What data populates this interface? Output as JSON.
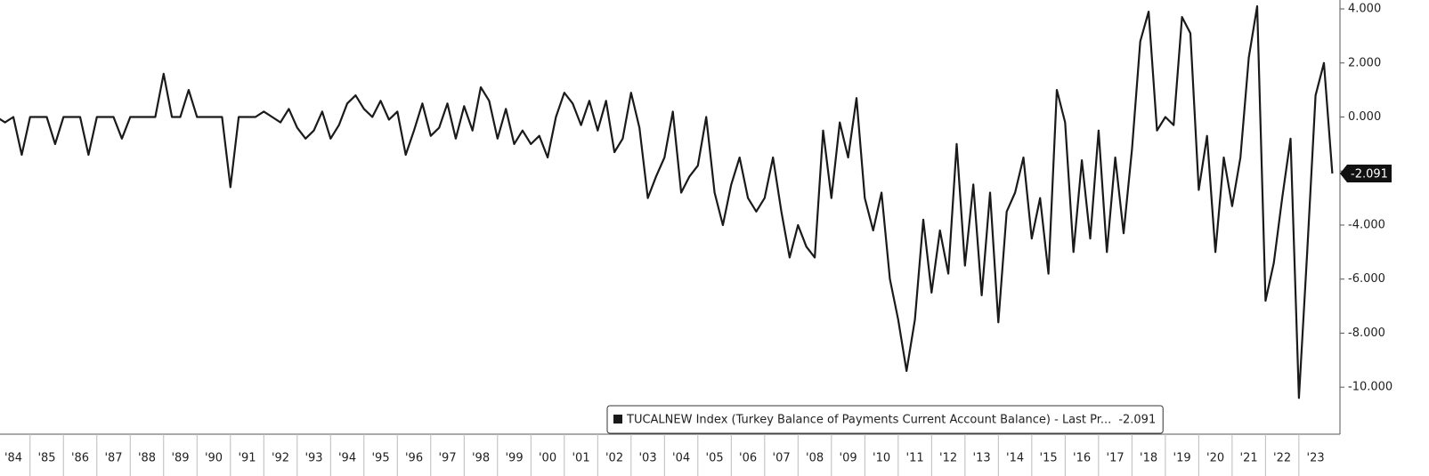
{
  "chart_data": {
    "type": "line",
    "series": [
      {
        "name": "TUCALNEW Index (Turkey Balance of Payments Current Account Balance) - Last Pr...",
        "color": "#1a1a1a",
        "values": [
          0,
          -0.2,
          0,
          -1.4,
          0,
          0,
          0,
          -1.0,
          0,
          0,
          0,
          -1.4,
          0,
          0,
          0,
          -0.8,
          0,
          0,
          0,
          0,
          1.6,
          0,
          0,
          1.0,
          0,
          0,
          0,
          0,
          -2.6,
          0,
          0,
          0,
          0.2,
          0,
          -0.2,
          0.3,
          -0.4,
          -0.8,
          -0.5,
          0.2,
          -0.8,
          -0.3,
          0.5,
          0.8,
          0.3,
          0,
          0.6,
          -0.1,
          0.2,
          -1.4,
          -0.5,
          0.5,
          -0.7,
          -0.4,
          0.5,
          -0.8,
          0.4,
          -0.5,
          1.1,
          0.6,
          -0.8,
          0.3,
          -1.0,
          -0.5,
          -1.0,
          -0.7,
          -1.5,
          0,
          0.9,
          0.5,
          -0.3,
          0.6,
          -0.5,
          0.6,
          -1.3,
          -0.8,
          0.9,
          -0.4,
          -3.0,
          -2.2,
          -1.5,
          0.2,
          -2.8,
          -2.2,
          -1.8,
          0,
          -2.8,
          -4.0,
          -2.5,
          -1.5,
          -3.0,
          -3.5,
          -3.0,
          -1.5,
          -3.5,
          -5.2,
          -4.0,
          -4.8,
          -5.2,
          -0.5,
          -3.0,
          -0.2,
          -1.5,
          0.7,
          -3.0,
          -4.2,
          -2.8,
          -6.0,
          -7.5,
          -9.4,
          -7.5,
          -3.8,
          -6.5,
          -4.2,
          -5.8,
          -1.0,
          -5.5,
          -2.5,
          -6.6,
          -2.8,
          -7.6,
          -3.5,
          -2.8,
          -1.5,
          -4.5,
          -3.0,
          -5.8,
          1.0,
          -0.2,
          -5.0,
          -1.6,
          -4.5,
          -0.5,
          -5.0,
          -1.5,
          -4.3,
          -1.2,
          2.8,
          3.9,
          -0.5,
          0,
          -0.3,
          3.7,
          3.1,
          -2.7,
          -0.7,
          -5.0,
          -1.5,
          -3.3,
          -1.5,
          2.2,
          4.1,
          -6.8,
          -5.4,
          -3.0,
          -0.8,
          -10.4,
          -5.0,
          0.8,
          2.0,
          -2.091
        ]
      }
    ],
    "x": [
      1984,
      1984.25,
      1984.5,
      1984.75,
      1985,
      1985.25,
      1985.5,
      1985.75,
      1986,
      1986.25,
      1986.5,
      1986.75,
      1987,
      1987.25,
      1987.5,
      1987.75,
      1988,
      1988.25,
      1988.5,
      1988.75,
      1989,
      1989.25,
      1989.5,
      1989.75,
      1990,
      1990.25,
      1990.5,
      1990.75,
      1991,
      1991.25,
      1991.5,
      1991.75,
      1992,
      1992.25,
      1992.5,
      1992.75,
      1993,
      1993.25,
      1993.5,
      1993.75,
      1994,
      1994.25,
      1994.5,
      1994.75,
      1995,
      1995.25,
      1995.5,
      1995.75,
      1996,
      1996.25,
      1996.5,
      1996.75,
      1997,
      1997.25,
      1997.5,
      1997.75,
      1998,
      1998.25,
      1998.5,
      1998.75,
      1999,
      1999.25,
      1999.5,
      1999.75,
      2000,
      2000.25,
      2000.5,
      2000.75,
      2001,
      2001.25,
      2001.5,
      2001.75,
      2002,
      2002.25,
      2002.5,
      2002.75,
      2003,
      2003.25,
      2003.5,
      2003.75,
      2004,
      2004.25,
      2004.5,
      2004.75,
      2005,
      2005.25,
      2005.5,
      2005.75,
      2006,
      2006.25,
      2006.5,
      2006.75,
      2007,
      2007.25,
      2007.5,
      2007.75,
      2008,
      2008.25,
      2008.5,
      2008.75,
      2009,
      2009.25,
      2009.5,
      2009.75,
      2010,
      2010.25,
      2010.5,
      2010.75,
      2011,
      2011.25,
      2011.5,
      2011.75,
      2012,
      2012.25,
      2012.5,
      2012.75,
      2013,
      2013.25,
      2013.5,
      2013.75,
      2014,
      2014.25,
      2014.5,
      2014.75,
      2015,
      2015.25,
      2015.5,
      2015.75,
      2016,
      2016.25,
      2016.5,
      2016.75,
      2017,
      2017.25,
      2017.5,
      2017.75,
      2018,
      2018.25,
      2018.5,
      2018.75,
      2019,
      2019.25,
      2019.5,
      2019.75,
      2020,
      2020.25,
      2020.5,
      2020.75,
      2021,
      2021.25,
      2021.5,
      2021.75,
      2022,
      2022.25,
      2022.5,
      2022.75,
      2023,
      2023.25,
      2023.5,
      2023.75,
      2024
    ],
    "xlim": [
      1984.1,
      2024.23
    ],
    "xticks": [
      {
        "value": 1984,
        "label": "'84"
      },
      {
        "value": 1985,
        "label": "'85"
      },
      {
        "value": 1986,
        "label": "'86"
      },
      {
        "value": 1987,
        "label": "'87"
      },
      {
        "value": 1988,
        "label": "'88"
      },
      {
        "value": 1989,
        "label": "'89"
      },
      {
        "value": 1990,
        "label": "'90"
      },
      {
        "value": 1991,
        "label": "'91"
      },
      {
        "value": 1992,
        "label": "'92"
      },
      {
        "value": 1993,
        "label": "'93"
      },
      {
        "value": 1994,
        "label": "'94"
      },
      {
        "value": 1995,
        "label": "'95"
      },
      {
        "value": 1996,
        "label": "'96"
      },
      {
        "value": 1997,
        "label": "'97"
      },
      {
        "value": 1998,
        "label": "'98"
      },
      {
        "value": 1999,
        "label": "'99"
      },
      {
        "value": 2000,
        "label": "'00"
      },
      {
        "value": 2001,
        "label": "'01"
      },
      {
        "value": 2002,
        "label": "'02"
      },
      {
        "value": 2003,
        "label": "'03"
      },
      {
        "value": 2004,
        "label": "'04"
      },
      {
        "value": 2005,
        "label": "'05"
      },
      {
        "value": 2006,
        "label": "'06"
      },
      {
        "value": 2007,
        "label": "'07"
      },
      {
        "value": 2008,
        "label": "'08"
      },
      {
        "value": 2009,
        "label": "'09"
      },
      {
        "value": 2010,
        "label": "'10"
      },
      {
        "value": 2011,
        "label": "'11"
      },
      {
        "value": 2012,
        "label": "'12"
      },
      {
        "value": 2013,
        "label": "'13"
      },
      {
        "value": 2014,
        "label": "'14"
      },
      {
        "value": 2015,
        "label": "'15"
      },
      {
        "value": 2016,
        "label": "'16"
      },
      {
        "value": 2017,
        "label": "'17"
      },
      {
        "value": 2018,
        "label": "'18"
      },
      {
        "value": 2019,
        "label": "'19"
      },
      {
        "value": 2020,
        "label": "'20"
      },
      {
        "value": 2021,
        "label": "'21"
      },
      {
        "value": 2022,
        "label": "'22"
      },
      {
        "value": 2023,
        "label": "'23"
      }
    ],
    "ylim": [
      -11.74,
      4.33
    ],
    "yticks": [
      {
        "value": 4,
        "label": "4.000"
      },
      {
        "value": 2,
        "label": "2.000"
      },
      {
        "value": 0,
        "label": "0.000"
      },
      {
        "value": -2,
        "label": "-2.000"
      },
      {
        "value": -4,
        "label": "-4.000"
      },
      {
        "value": -6,
        "label": "-6.000"
      },
      {
        "value": -8,
        "label": "-8.000"
      },
      {
        "value": -10,
        "label": "-10.000"
      }
    ],
    "grid": false
  }
}
